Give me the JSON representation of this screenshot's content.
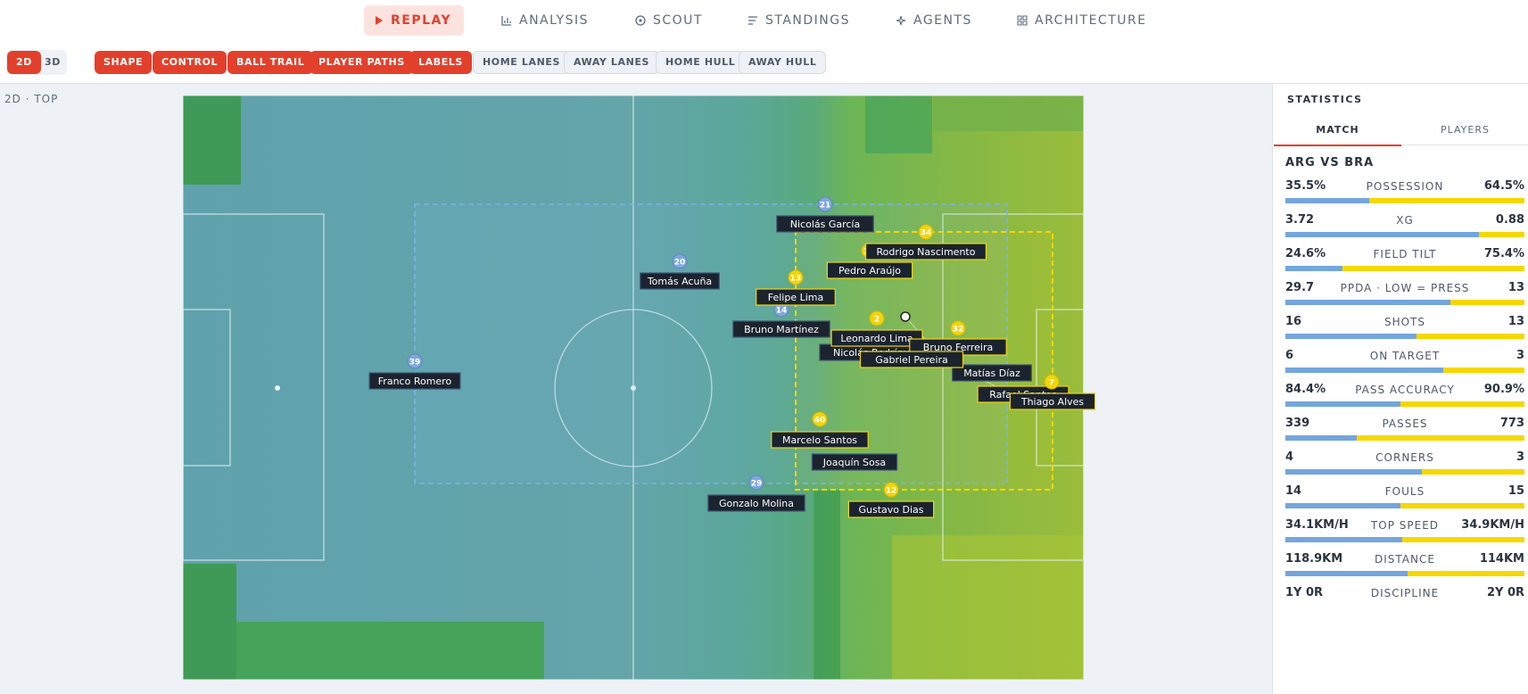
{
  "nav": {
    "tabs": [
      "REPLAY",
      "ANALYSIS",
      "SCOUT",
      "STANDINGS",
      "AGENTS",
      "ARCHITECTURE"
    ],
    "active": 0
  },
  "toolbar": {
    "views": [
      {
        "label": "2D",
        "on": true
      },
      {
        "label": "3D",
        "on": false
      }
    ],
    "layers": [
      {
        "label": "SHAPE",
        "on": true
      },
      {
        "label": "CONTROL",
        "on": true
      },
      {
        "label": "BALL TRAIL",
        "on": true
      },
      {
        "label": "PLAYER PATHS",
        "on": true
      },
      {
        "label": "LABELS",
        "on": true
      },
      {
        "label": "HOME LANES",
        "on": false
      },
      {
        "label": "AWAY LANES",
        "on": false
      },
      {
        "label": "HOME HULL",
        "on": false
      },
      {
        "label": "AWAY HULL",
        "on": false
      }
    ]
  },
  "view_label": "2D · TOP",
  "pitch": {
    "players": [
      {
        "number": 21,
        "name": "Nicolás García",
        "team": "home"
      },
      {
        "number": 20,
        "name": "Tomás Acuña",
        "team": "home"
      },
      {
        "number": 39,
        "name": "Franco Romero",
        "team": "home"
      },
      {
        "number": 14,
        "name": "Bruno Martínez",
        "team": "home"
      },
      {
        "number": 29,
        "name": "Gonzalo Molina",
        "team": "home"
      },
      {
        "name": "Joaquín Sosa",
        "team": "home"
      },
      {
        "name": "Nicolás Rodríguez",
        "team": "home"
      },
      {
        "name": "Matías Díaz",
        "team": "home"
      },
      {
        "number": 13,
        "name": "Felipe Lima",
        "team": "away"
      },
      {
        "number": 11,
        "name": "Pedro Araújo",
        "team": "away"
      },
      {
        "number": 34,
        "name": "Rodrigo Nascimento",
        "team": "away"
      },
      {
        "number": 2,
        "name": "Leonardo Lima",
        "team": "away"
      },
      {
        "number": 32,
        "name": "Bruno Ferreira",
        "team": "away"
      },
      {
        "name": "Gabriel Pereira",
        "team": "away"
      },
      {
        "name": "Rafael Santos",
        "team": "away"
      },
      {
        "number": 7,
        "name": "Thiago Alves",
        "team": "away"
      },
      {
        "number": 40,
        "name": "Marcelo Santos",
        "team": "away"
      },
      {
        "number": 12,
        "name": "Gustavo Dias",
        "team": "away"
      }
    ]
  },
  "stats": {
    "title": "STATISTICS",
    "tabs": [
      "MATCH",
      "PLAYERS"
    ],
    "active_tab": 0,
    "matchup": "ARG VS BRA",
    "rows": [
      {
        "home": "35.5%",
        "label": "POSSESSION",
        "away": "64.5%",
        "home_share": 35
      },
      {
        "home": "3.72",
        "label": "XG",
        "away": "0.88",
        "home_share": 81
      },
      {
        "home": "24.6%",
        "label": "FIELD TILT",
        "away": "75.4%",
        "home_share": 24
      },
      {
        "home": "29.7",
        "label": "PPDA · LOW = PRESS",
        "away": "13",
        "home_share": 69
      },
      {
        "home": "16",
        "label": "SHOTS",
        "away": "13",
        "home_share": 55
      },
      {
        "home": "6",
        "label": "ON TARGET",
        "away": "3",
        "home_share": 66
      },
      {
        "home": "84.4%",
        "label": "PASS ACCURACY",
        "away": "90.9%",
        "home_share": 48
      },
      {
        "home": "339",
        "label": "PASSES",
        "away": "773",
        "home_share": 30
      },
      {
        "home": "4",
        "label": "CORNERS",
        "away": "3",
        "home_share": 57
      },
      {
        "home": "14",
        "label": "FOULS",
        "away": "15",
        "home_share": 48
      },
      {
        "home": "34.1KM/H",
        "label": "TOP SPEED",
        "away": "34.9KM/H",
        "home_share": 49
      },
      {
        "home": "118.9KM",
        "label": "DISTANCE",
        "away": "114KM",
        "home_share": 51
      },
      {
        "home": "1Y 0R",
        "label": "DISCIPLINE",
        "away": "2Y 0R"
      }
    ]
  }
}
